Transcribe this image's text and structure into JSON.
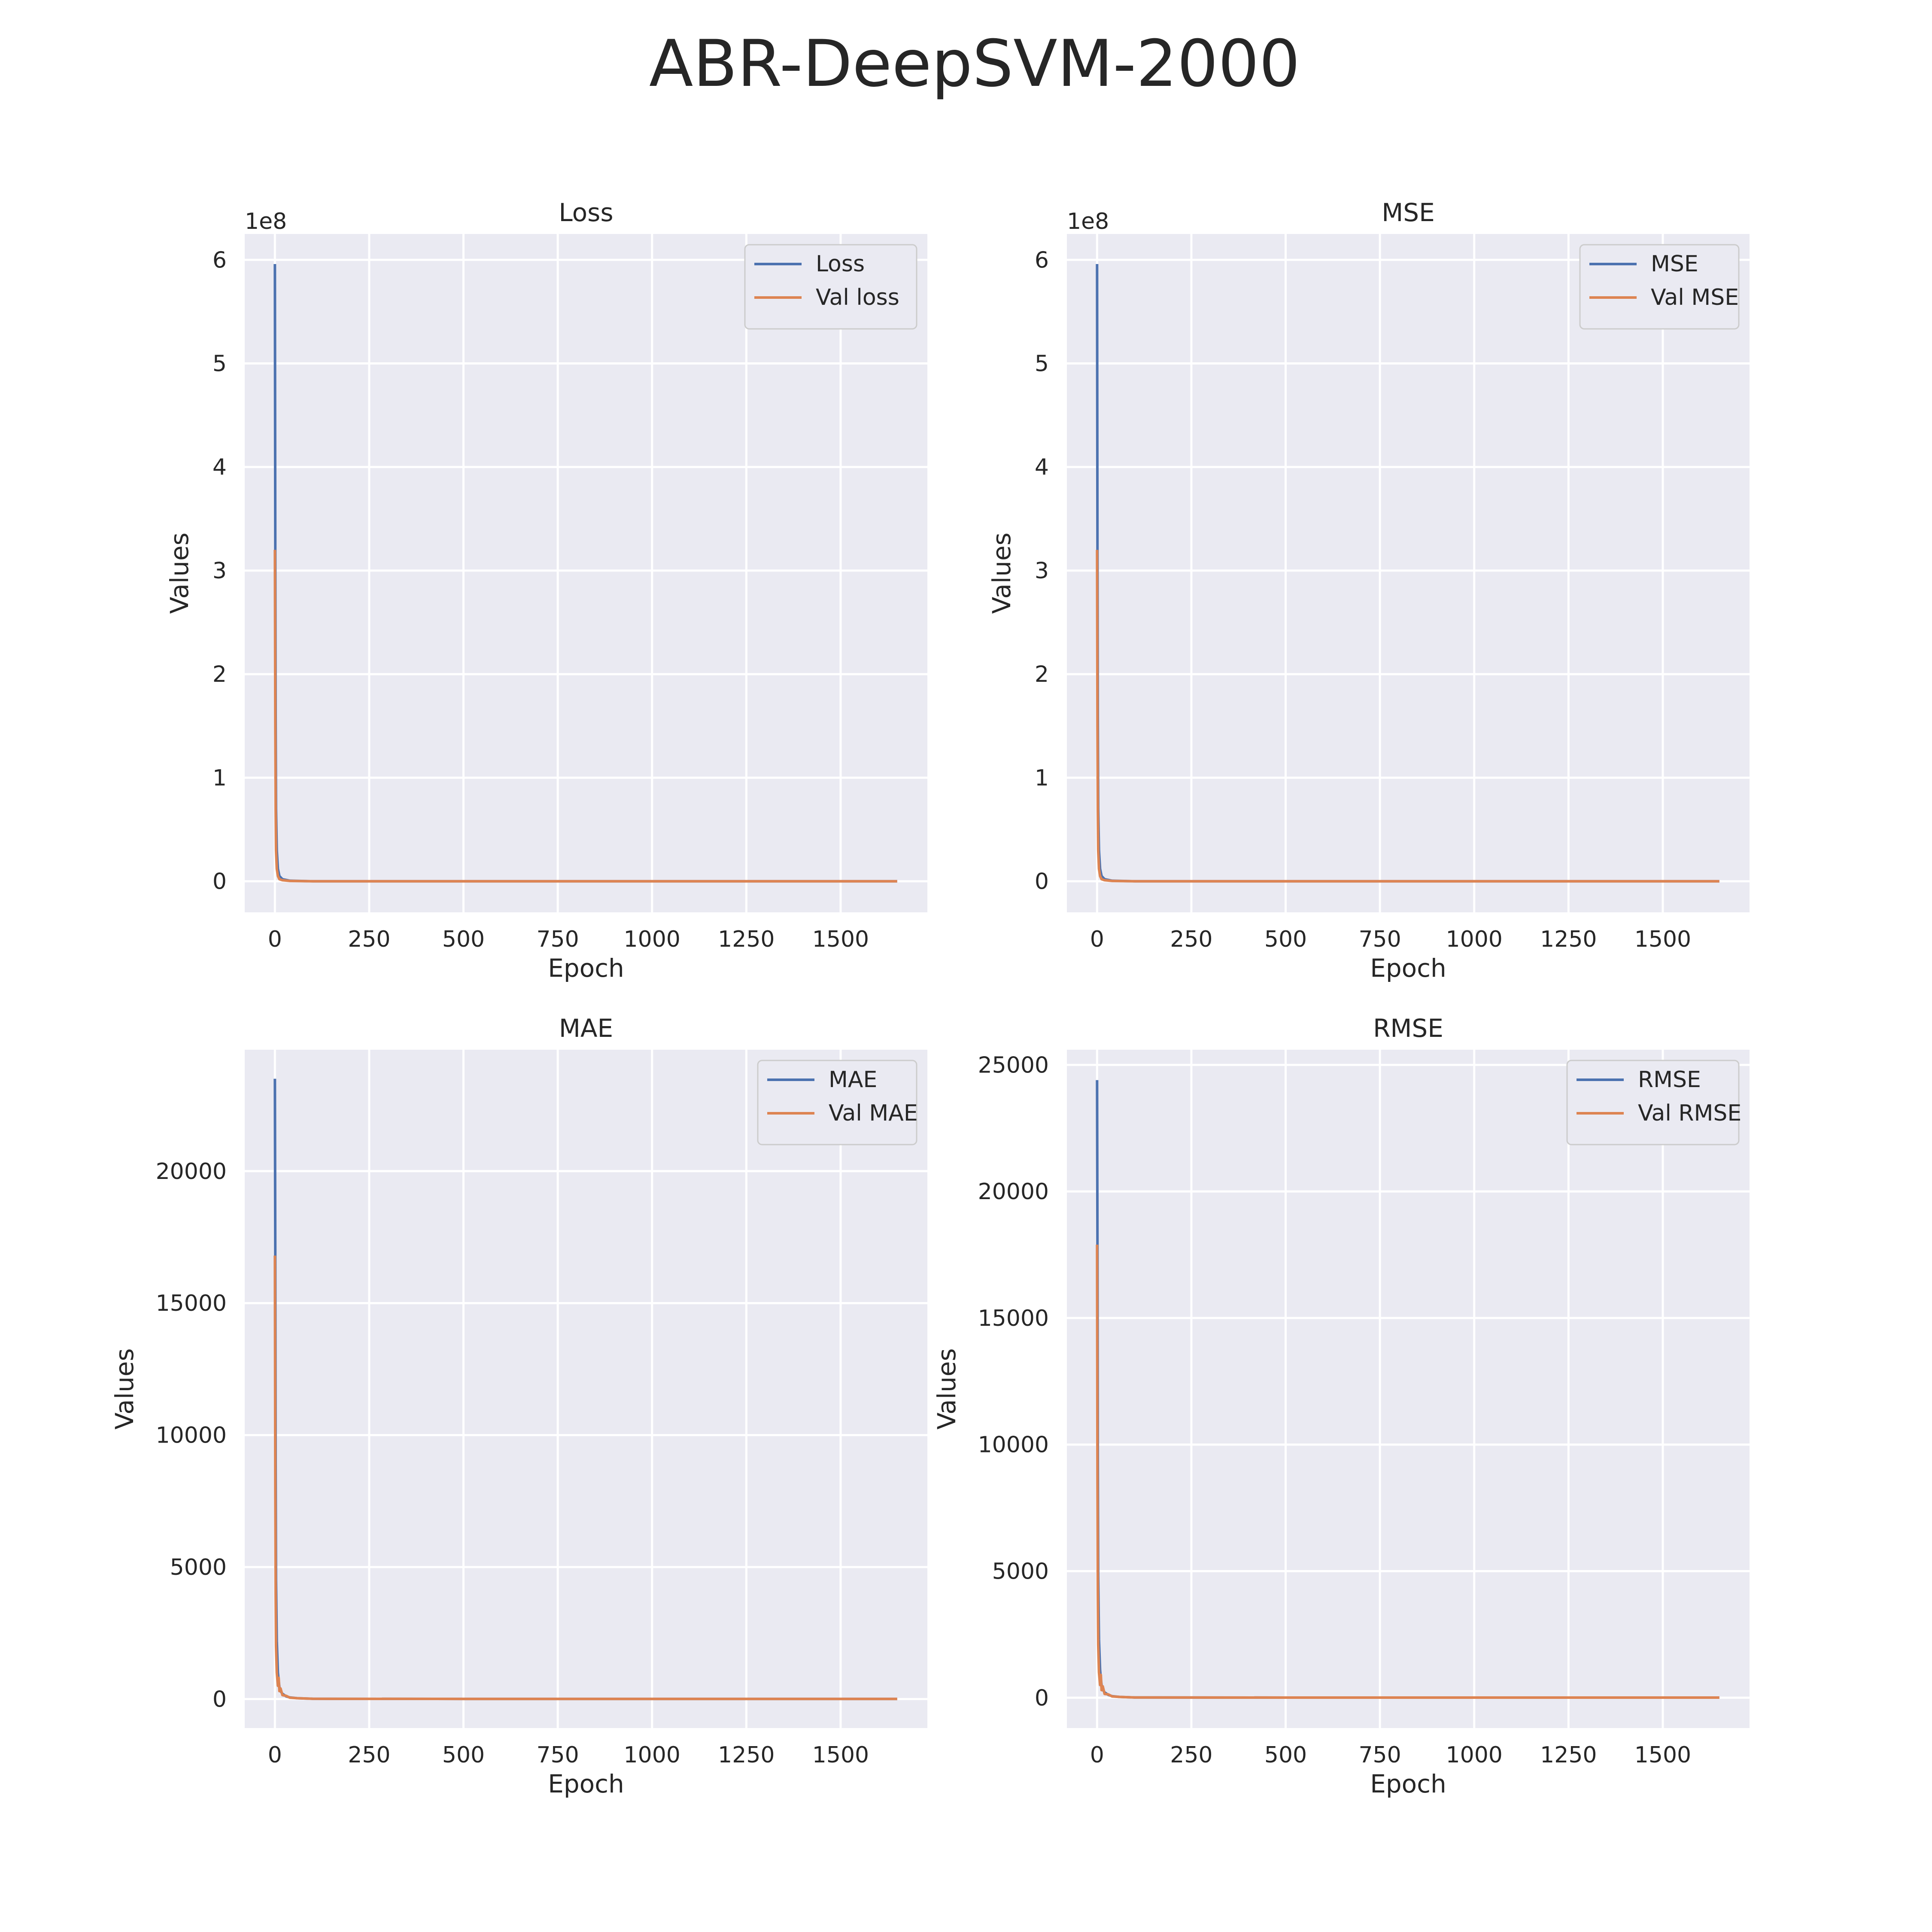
{
  "figure": {
    "title": "ABR-DeepSVM-2000",
    "colors": {
      "train": "#4c72b0",
      "val": "#dd8452",
      "plot_bg": "#eaeaf2",
      "grid": "#ffffff"
    }
  },
  "chart_data": [
    {
      "type": "line",
      "title": "Loss",
      "xlabel": "Epoch",
      "ylabel": "Values",
      "y_offset_label": "1e8",
      "xlim": [
        -80,
        1730
      ],
      "ylim": [
        -0.3,
        6.25
      ],
      "xticks": [
        0,
        250,
        500,
        750,
        1000,
        1250,
        1500
      ],
      "xtick_labels": [
        "0",
        "250",
        "500",
        "750",
        "1000",
        "1250",
        "1500"
      ],
      "yticks": [
        0,
        1,
        2,
        3,
        4,
        5,
        6
      ],
      "ytick_labels": [
        "0",
        "1",
        "2",
        "3",
        "4",
        "5",
        "6"
      ],
      "grid": true,
      "legend_position": "top-right",
      "series": [
        {
          "name": "Loss",
          "color": "#4c72b0",
          "x": [
            0,
            1,
            2,
            3,
            5,
            8,
            12,
            20,
            40,
            100,
            500,
            1000,
            1500,
            1650
          ],
          "y": [
            5.96,
            3.2,
            1.6,
            0.7,
            0.3,
            0.12,
            0.05,
            0.02,
            0.005,
            0.0,
            0.0,
            0.0,
            0.0,
            0.0
          ]
        },
        {
          "name": "Val loss",
          "color": "#dd8452",
          "x": [
            0,
            1,
            2,
            3,
            5,
            8,
            12,
            20,
            40,
            100,
            500,
            1000,
            1500,
            1650
          ],
          "y": [
            3.2,
            1.5,
            0.7,
            0.3,
            0.12,
            0.05,
            0.02,
            0.01,
            0.003,
            0.0,
            0.0,
            0.0,
            0.0,
            0.0
          ]
        }
      ]
    },
    {
      "type": "line",
      "title": "MSE",
      "xlabel": "Epoch",
      "ylabel": "Values",
      "y_offset_label": "1e8",
      "xlim": [
        -80,
        1730
      ],
      "ylim": [
        -0.3,
        6.25
      ],
      "xticks": [
        0,
        250,
        500,
        750,
        1000,
        1250,
        1500
      ],
      "xtick_labels": [
        "0",
        "250",
        "500",
        "750",
        "1000",
        "1250",
        "1500"
      ],
      "yticks": [
        0,
        1,
        2,
        3,
        4,
        5,
        6
      ],
      "ytick_labels": [
        "0",
        "1",
        "2",
        "3",
        "4",
        "5",
        "6"
      ],
      "grid": true,
      "legend_position": "top-right",
      "series": [
        {
          "name": "MSE",
          "color": "#4c72b0",
          "x": [
            0,
            1,
            2,
            3,
            5,
            8,
            12,
            20,
            40,
            100,
            500,
            1000,
            1500,
            1650
          ],
          "y": [
            5.96,
            3.2,
            1.6,
            0.7,
            0.3,
            0.12,
            0.05,
            0.02,
            0.005,
            0.0,
            0.0,
            0.0,
            0.0,
            0.0
          ]
        },
        {
          "name": "Val MSE",
          "color": "#dd8452",
          "x": [
            0,
            1,
            2,
            3,
            5,
            8,
            12,
            20,
            40,
            100,
            500,
            1000,
            1500,
            1650
          ],
          "y": [
            3.2,
            1.5,
            0.7,
            0.3,
            0.12,
            0.05,
            0.02,
            0.01,
            0.003,
            0.0,
            0.0,
            0.0,
            0.0,
            0.0
          ]
        }
      ]
    },
    {
      "type": "line",
      "title": "MAE",
      "xlabel": "Epoch",
      "ylabel": "Values",
      "y_offset_label": "",
      "xlim": [
        -80,
        1730
      ],
      "ylim": [
        -1100,
        24600
      ],
      "xticks": [
        0,
        250,
        500,
        750,
        1000,
        1250,
        1500
      ],
      "xtick_labels": [
        "0",
        "250",
        "500",
        "750",
        "1000",
        "1250",
        "1500"
      ],
      "yticks": [
        0,
        5000,
        10000,
        15000,
        20000
      ],
      "ytick_labels": [
        "0",
        "5000",
        "10000",
        "15000",
        "20000"
      ],
      "grid": true,
      "legend_position": "top-right",
      "series": [
        {
          "name": "MAE",
          "color": "#4c72b0",
          "x": [
            0,
            1,
            2,
            3,
            5,
            8,
            10,
            12,
            15,
            20,
            30,
            40,
            60,
            100,
            500,
            1000,
            1500,
            1650
          ],
          "y": [
            23500,
            16800,
            9000,
            4500,
            2200,
            1000,
            700,
            450,
            300,
            200,
            100,
            60,
            30,
            10,
            5,
            5,
            5,
            5
          ]
        },
        {
          "name": "Val MAE",
          "color": "#dd8452",
          "x": [
            0,
            1,
            2,
            3,
            5,
            8,
            10,
            12,
            15,
            20,
            30,
            40,
            60,
            100,
            500,
            1000,
            1500,
            1650
          ],
          "y": [
            16800,
            8000,
            4000,
            2000,
            1000,
            500,
            800,
            300,
            400,
            150,
            120,
            50,
            30,
            10,
            5,
            5,
            5,
            5
          ]
        }
      ]
    },
    {
      "type": "line",
      "title": "RMSE",
      "xlabel": "Epoch",
      "ylabel": "Values",
      "y_offset_label": "",
      "xlim": [
        -80,
        1730
      ],
      "ylim": [
        -1200,
        25600
      ],
      "xticks": [
        0,
        250,
        500,
        750,
        1000,
        1250,
        1500
      ],
      "xtick_labels": [
        "0",
        "250",
        "500",
        "750",
        "1000",
        "1250",
        "1500"
      ],
      "yticks": [
        0,
        5000,
        10000,
        15000,
        20000,
        25000
      ],
      "ytick_labels": [
        "0",
        "5000",
        "10000",
        "15000",
        "20000",
        "25000"
      ],
      "grid": true,
      "legend_position": "top-right",
      "series": [
        {
          "name": "RMSE",
          "color": "#4c72b0",
          "x": [
            0,
            1,
            2,
            3,
            5,
            8,
            10,
            12,
            15,
            20,
            30,
            40,
            60,
            100,
            500,
            1000,
            1500,
            1650
          ],
          "y": [
            24400,
            17900,
            9500,
            4800,
            2300,
            1100,
            750,
            500,
            320,
            210,
            110,
            60,
            30,
            10,
            5,
            5,
            5,
            5
          ]
        },
        {
          "name": "Val RMSE",
          "color": "#dd8452",
          "x": [
            0,
            1,
            2,
            3,
            5,
            8,
            10,
            12,
            15,
            20,
            30,
            40,
            60,
            100,
            500,
            1000,
            1500,
            1650
          ],
          "y": [
            17900,
            8500,
            4200,
            2100,
            1000,
            500,
            900,
            300,
            450,
            150,
            130,
            50,
            30,
            10,
            5,
            5,
            5,
            5
          ]
        }
      ]
    }
  ]
}
